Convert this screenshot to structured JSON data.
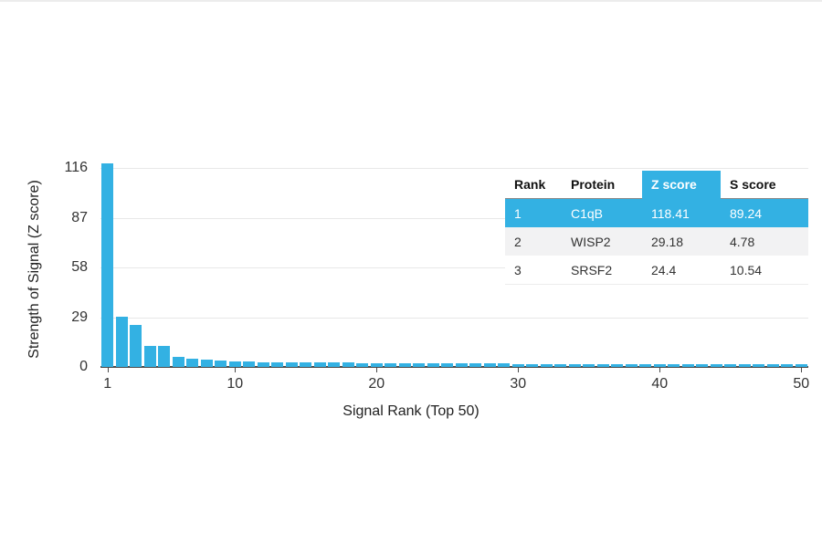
{
  "chart_data": {
    "type": "bar",
    "title": "",
    "xlabel": "Signal Rank (Top 50)",
    "ylabel": "Strength of Signal (Z score)",
    "x_ticks": [
      1,
      10,
      20,
      30,
      40,
      50
    ],
    "y_ticks": [
      0,
      29,
      58,
      87,
      116
    ],
    "ylim": [
      0,
      116
    ],
    "xlim": [
      1,
      50
    ],
    "grid": "horizontal",
    "bar_color": "#33b1e3",
    "x": [
      1,
      2,
      3,
      4,
      5,
      6,
      7,
      8,
      9,
      10,
      11,
      12,
      13,
      14,
      15,
      16,
      17,
      18,
      19,
      20,
      21,
      22,
      23,
      24,
      25,
      26,
      27,
      28,
      29,
      30,
      31,
      32,
      33,
      34,
      35,
      36,
      37,
      38,
      39,
      40,
      41,
      42,
      43,
      44,
      45,
      46,
      47,
      48,
      49,
      50
    ],
    "values": [
      118.41,
      29.18,
      24.4,
      12.5,
      12.2,
      5.8,
      4.9,
      4.5,
      3.8,
      3.4,
      3.1,
      2.9,
      2.8,
      2.7,
      2.6,
      2.5,
      2.45,
      2.4,
      2.35,
      2.3,
      2.25,
      2.2,
      2.15,
      2.1,
      2.05,
      2.0,
      1.95,
      1.9,
      1.88,
      1.85,
      1.82,
      1.8,
      1.78,
      1.75,
      1.72,
      1.7,
      1.68,
      1.65,
      1.62,
      1.6,
      1.58,
      1.55,
      1.52,
      1.5,
      1.48,
      1.45,
      1.42,
      1.4,
      1.38,
      1.35
    ]
  },
  "table": {
    "headers": [
      "Rank",
      "Protein",
      "Z score",
      "S score"
    ],
    "rows": [
      {
        "rank": "1",
        "protein": "C1qB",
        "z": "118.41",
        "s": "89.24"
      },
      {
        "rank": "2",
        "protein": "WISP2",
        "z": "29.18",
        "s": "4.78"
      },
      {
        "rank": "3",
        "protein": "SRSF2",
        "z": "24.4",
        "s": "10.54"
      }
    ],
    "highlight_color": "#33b1e3"
  }
}
